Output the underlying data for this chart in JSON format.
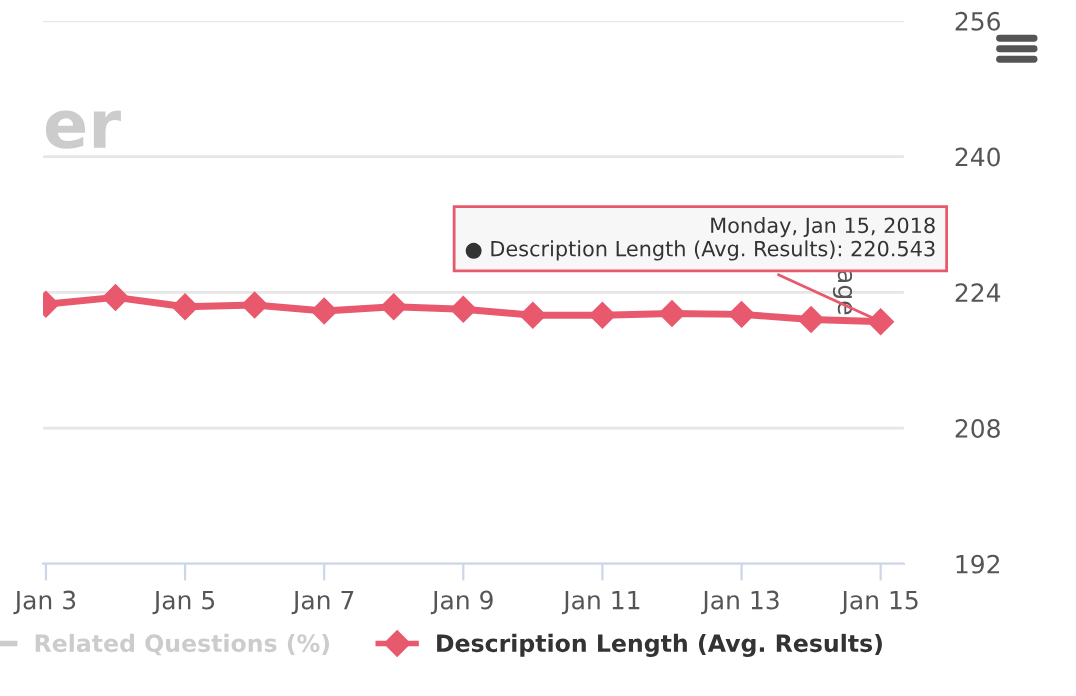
{
  "chart_data": {
    "type": "line",
    "title": "er",
    "ylabel": "age",
    "x": [
      "2018-01-03",
      "2018-01-04",
      "2018-01-05",
      "2018-01-06",
      "2018-01-07",
      "2018-01-08",
      "2018-01-09",
      "2018-01-10",
      "2018-01-11",
      "2018-01-12",
      "2018-01-13",
      "2018-01-14",
      "2018-01-15"
    ],
    "series": [
      {
        "name": "Related Questions (%)",
        "color": "#cccccc",
        "values": [
          null,
          null,
          null,
          null,
          null,
          null,
          null,
          null,
          null,
          null,
          null,
          null,
          null
        ]
      },
      {
        "name": "Description Length (Avg. Results)",
        "color": "#e8596e",
        "values": [
          222.6,
          223.4,
          222.3,
          222.5,
          221.8,
          222.3,
          222.0,
          221.3,
          221.3,
          221.5,
          221.4,
          220.8,
          220.543
        ]
      }
    ],
    "xlim": [
      "2018-01-02T23:00",
      "2018-01-15T08:00"
    ],
    "xticks": [
      {
        "value": "2018-01-03",
        "label": "Jan 3"
      },
      {
        "value": "2018-01-05",
        "label": "Jan 5"
      },
      {
        "value": "2018-01-07",
        "label": "Jan 7"
      },
      {
        "value": "2018-01-09",
        "label": "Jan 9"
      },
      {
        "value": "2018-01-11",
        "label": "Jan 11"
      },
      {
        "value": "2018-01-13",
        "label": "Jan 13"
      },
      {
        "value": "2018-01-15",
        "label": "Jan 15"
      }
    ],
    "ylim": [
      192,
      256
    ],
    "yticks": [
      192,
      208,
      224,
      240,
      256
    ],
    "grid": "y",
    "legend": "bottom",
    "marker": "diamond",
    "line_style": "solid",
    "annotations": [
      {
        "text": "Monday, Jan 15, 2018\n● Description Length (Avg. Results): 220.543",
        "x": "2018-01-15",
        "y": 220.543
      }
    ]
  }
}
